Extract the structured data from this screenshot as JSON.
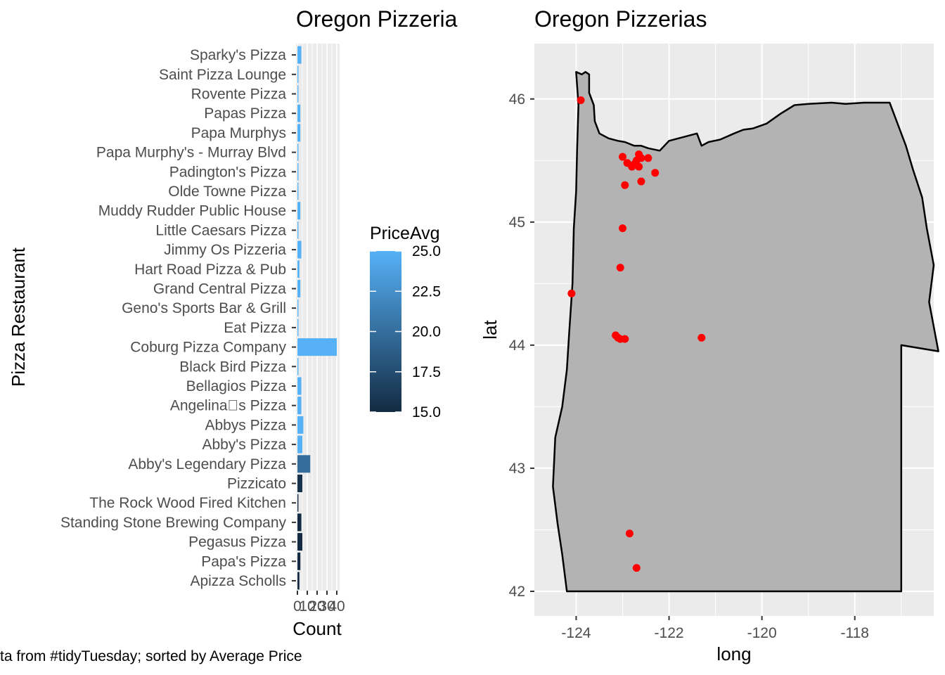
{
  "caption": "ta from #tidyTuesday; sorted by Average Price",
  "chart_data": [
    {
      "type": "bar",
      "orientation": "horizontal",
      "title": "Oregon Pizzeria",
      "xlabel": "Count",
      "ylabel": "Pizza Restaurant",
      "xlim": [
        0,
        40
      ],
      "xticks": [
        "0",
        "10",
        "20",
        "30",
        "40"
      ],
      "categories": [
        "Apizza Scholls",
        "Papa's Pizza",
        "Pegasus Pizza",
        "Standing Stone Brewing Company",
        "The Rock Wood Fired Kitchen",
        "Pizzicato",
        "Abby's Legendary Pizza",
        "Abby's Pizza",
        "Abbys Pizza",
        "Angelina\u0000s Pizza",
        "Bellagios Pizza",
        "Black Bird Pizza",
        "Coburg Pizza Company",
        "Eat Pizza",
        "Geno's Sports Bar & Grill",
        "Grand Central Pizza",
        "Hart Road Pizza & Pub",
        "Jimmy Os Pizzeria",
        "Little Caesars Pizza",
        "Muddy Rudder Public House",
        "Olde Towne Pizza",
        "Padington's Pizza",
        "Papa Murphy's - Murray Blvd",
        "Papa Murphys",
        "Papas Pizza",
        "Rovente Pizza",
        "Saint Pizza Lounge",
        "Sparky's Pizza"
      ],
      "values": [
        2,
        3,
        5,
        4,
        1,
        5,
        13,
        5,
        6,
        4,
        4,
        1,
        40,
        1,
        1,
        3,
        2,
        4,
        1,
        3,
        1,
        1,
        1,
        3,
        3,
        1,
        1,
        4
      ],
      "price_avg": [
        15,
        15,
        15,
        15,
        15,
        15.5,
        20,
        25,
        25,
        25,
        25,
        25,
        25,
        25,
        25,
        25,
        25,
        25,
        25,
        25,
        25,
        25,
        25,
        25,
        25,
        25,
        25,
        25
      ],
      "legend": {
        "title": "PriceAvg",
        "range": [
          15,
          25
        ],
        "labels": [
          "25.0",
          "22.5",
          "20.0",
          "17.5",
          "15.0"
        ],
        "color_low": "#132B43",
        "color_high": "#56B1F7"
      }
    },
    {
      "type": "scatter",
      "title": "Oregon Pizzerias",
      "xlabel": "long",
      "ylabel": "lat",
      "xlim": [
        -124.9,
        -116.3
      ],
      "ylim": [
        41.8,
        46.45
      ],
      "xticks": [
        -124,
        -122,
        -120,
        -118
      ],
      "yticks": [
        42,
        43,
        44,
        45,
        46
      ],
      "xtick_labels": [
        "-124",
        "-122",
        "-120",
        "-118"
      ],
      "ytick_labels": [
        "42",
        "43",
        "44",
        "45",
        "46"
      ],
      "point_color": "#FF0000",
      "map_fill": "#B3B3B3",
      "outline": [
        [
          -124.0,
          46.22
        ],
        [
          -123.88,
          46.2
        ],
        [
          -123.8,
          46.22
        ],
        [
          -123.72,
          46.2
        ],
        [
          -123.72,
          46.05
        ],
        [
          -123.62,
          45.95
        ],
        [
          -123.6,
          45.82
        ],
        [
          -123.5,
          45.72
        ],
        [
          -123.3,
          45.68
        ],
        [
          -123.1,
          45.66
        ],
        [
          -122.95,
          45.65
        ],
        [
          -122.75,
          45.62
        ],
        [
          -122.6,
          45.62
        ],
        [
          -122.45,
          45.6
        ],
        [
          -122.2,
          45.58
        ],
        [
          -122.0,
          45.66
        ],
        [
          -121.8,
          45.68
        ],
        [
          -121.6,
          45.7
        ],
        [
          -121.4,
          45.72
        ],
        [
          -121.3,
          45.62
        ],
        [
          -121.15,
          45.65
        ],
        [
          -120.9,
          45.67
        ],
        [
          -120.6,
          45.72
        ],
        [
          -120.4,
          45.75
        ],
        [
          -120.2,
          45.76
        ],
        [
          -119.9,
          45.8
        ],
        [
          -119.6,
          45.88
        ],
        [
          -119.3,
          45.95
        ],
        [
          -119.0,
          45.96
        ],
        [
          -118.5,
          45.97
        ],
        [
          -118.2,
          45.96
        ],
        [
          -117.8,
          45.97
        ],
        [
          -117.25,
          45.97
        ],
        [
          -117.1,
          45.82
        ],
        [
          -116.9,
          45.62
        ],
        [
          -116.75,
          45.43
        ],
        [
          -116.55,
          45.2
        ],
        [
          -116.45,
          44.95
        ],
        [
          -116.3,
          44.65
        ],
        [
          -116.4,
          44.35
        ],
        [
          -116.3,
          44.15
        ],
        [
          -116.2,
          43.95
        ],
        [
          -117.0,
          44.0
        ],
        [
          -117.0,
          42.0
        ],
        [
          -118.5,
          42.0
        ],
        [
          -120.0,
          42.0
        ],
        [
          -122.0,
          42.0
        ],
        [
          -124.2,
          42.0
        ],
        [
          -124.3,
          42.3
        ],
        [
          -124.4,
          42.55
        ],
        [
          -124.5,
          42.85
        ],
        [
          -124.45,
          43.25
        ],
        [
          -124.3,
          43.5
        ],
        [
          -124.2,
          43.8
        ],
        [
          -124.15,
          44.1
        ],
        [
          -124.08,
          44.5
        ],
        [
          -124.05,
          44.95
        ],
        [
          -124.0,
          45.25
        ],
        [
          -123.98,
          45.6
        ],
        [
          -123.95,
          45.95
        ],
        [
          -124.0,
          46.22
        ]
      ],
      "points": [
        [
          -123.9,
          45.99
        ],
        [
          -123.0,
          45.53
        ],
        [
          -122.9,
          45.48
        ],
        [
          -122.8,
          45.45
        ],
        [
          -122.7,
          45.5
        ],
        [
          -122.65,
          45.55
        ],
        [
          -122.6,
          45.52
        ],
        [
          -122.75,
          45.47
        ],
        [
          -122.65,
          45.45
        ],
        [
          -122.45,
          45.52
        ],
        [
          -122.3,
          45.4
        ],
        [
          -122.6,
          45.33
        ],
        [
          -122.95,
          45.3
        ],
        [
          -123.0,
          44.95
        ],
        [
          -123.05,
          44.63
        ],
        [
          -124.1,
          44.42
        ],
        [
          -123.1,
          44.06
        ],
        [
          -123.05,
          44.05
        ],
        [
          -122.95,
          44.05
        ],
        [
          -123.15,
          44.08
        ],
        [
          -121.3,
          44.06
        ],
        [
          -122.85,
          42.47
        ],
        [
          -122.7,
          42.19
        ]
      ]
    }
  ]
}
